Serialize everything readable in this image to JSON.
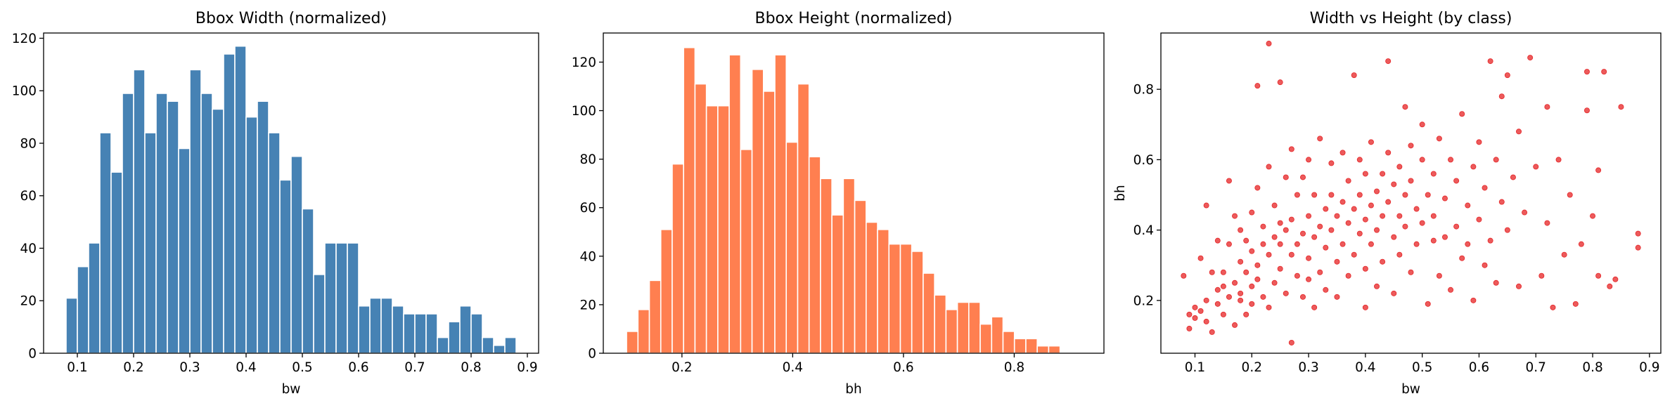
{
  "colors": {
    "hist_width": "#4682b4",
    "hist_height": "#ff7f50",
    "scatter": "#e41a1c"
  },
  "chart_data": [
    {
      "type": "bar",
      "title": "Bbox Width (normalized)",
      "xlabel": "bw",
      "ylabel": "",
      "xlim": [
        0.04,
        0.92
      ],
      "ylim": [
        0,
        122
      ],
      "xticks": [
        "0.1",
        "0.2",
        "0.3",
        "0.4",
        "0.5",
        "0.6",
        "0.7",
        "0.8",
        "0.9"
      ],
      "yticks": [
        "0",
        "20",
        "40",
        "60",
        "80",
        "100",
        "120"
      ],
      "bin_start": 0.08,
      "bin_width": 0.02,
      "values": [
        21,
        33,
        42,
        84,
        69,
        99,
        108,
        84,
        99,
        96,
        78,
        108,
        99,
        93,
        114,
        117,
        90,
        96,
        84,
        66,
        75,
        55,
        30,
        42,
        42,
        42,
        18,
        21,
        21,
        18,
        15,
        15,
        15,
        6,
        12,
        18,
        15,
        6,
        3,
        6
      ]
    },
    {
      "type": "bar",
      "title": "Bbox Height (normalized)",
      "xlabel": "bh",
      "ylabel": "",
      "xlim": [
        0.058,
        0.962
      ],
      "ylim": [
        0,
        132
      ],
      "xticks": [
        "0.2",
        "0.4",
        "0.6",
        "0.8"
      ],
      "yticks": [
        "0",
        "20",
        "40",
        "60",
        "80",
        "100",
        "120"
      ],
      "bin_start": 0.1,
      "bin_width": 0.0206,
      "values": [
        9,
        18,
        30,
        51,
        78,
        126,
        111,
        102,
        102,
        123,
        84,
        117,
        108,
        123,
        87,
        111,
        81,
        72,
        57,
        72,
        63,
        54,
        51,
        45,
        45,
        42,
        33,
        24,
        18,
        21,
        21,
        12,
        15,
        9,
        6,
        6,
        3,
        3
      ]
    },
    {
      "type": "scatter",
      "title": "Width vs Height (by class)",
      "xlabel": "bw",
      "ylabel": "bh",
      "xlim": [
        0.04,
        0.92
      ],
      "ylim": [
        0.05,
        0.96
      ],
      "xticks": [
        "0.1",
        "0.2",
        "0.3",
        "0.4",
        "0.5",
        "0.6",
        "0.7",
        "0.8",
        "0.9"
      ],
      "yticks": [
        "0.2",
        "0.4",
        "0.6",
        "0.8"
      ],
      "points": [
        [
          0.08,
          0.27
        ],
        [
          0.09,
          0.16
        ],
        [
          0.09,
          0.12
        ],
        [
          0.1,
          0.18
        ],
        [
          0.1,
          0.15
        ],
        [
          0.11,
          0.17
        ],
        [
          0.11,
          0.32
        ],
        [
          0.12,
          0.2
        ],
        [
          0.12,
          0.47
        ],
        [
          0.12,
          0.14
        ],
        [
          0.13,
          0.28
        ],
        [
          0.13,
          0.11
        ],
        [
          0.14,
          0.23
        ],
        [
          0.14,
          0.37
        ],
        [
          0.14,
          0.19
        ],
        [
          0.15,
          0.24
        ],
        [
          0.15,
          0.16
        ],
        [
          0.15,
          0.28
        ],
        [
          0.16,
          0.21
        ],
        [
          0.16,
          0.54
        ],
        [
          0.16,
          0.36
        ],
        [
          0.17,
          0.44
        ],
        [
          0.17,
          0.25
        ],
        [
          0.17,
          0.13
        ],
        [
          0.18,
          0.2
        ],
        [
          0.18,
          0.31
        ],
        [
          0.18,
          0.4
        ],
        [
          0.18,
          0.22
        ],
        [
          0.19,
          0.28
        ],
        [
          0.19,
          0.16
        ],
        [
          0.19,
          0.37
        ],
        [
          0.2,
          0.24
        ],
        [
          0.2,
          0.34
        ],
        [
          0.2,
          0.45
        ],
        [
          0.2,
          0.19
        ],
        [
          0.21,
          0.3
        ],
        [
          0.21,
          0.81
        ],
        [
          0.21,
          0.52
        ],
        [
          0.21,
          0.26
        ],
        [
          0.22,
          0.36
        ],
        [
          0.22,
          0.21
        ],
        [
          0.22,
          0.41
        ],
        [
          0.23,
          0.93
        ],
        [
          0.23,
          0.33
        ],
        [
          0.23,
          0.58
        ],
        [
          0.23,
          0.18
        ],
        [
          0.24,
          0.38
        ],
        [
          0.24,
          0.25
        ],
        [
          0.24,
          0.47
        ],
        [
          0.25,
          0.42
        ],
        [
          0.25,
          0.29
        ],
        [
          0.25,
          0.82
        ],
        [
          0.25,
          0.36
        ],
        [
          0.26,
          0.22
        ],
        [
          0.26,
          0.4
        ],
        [
          0.26,
          0.55
        ],
        [
          0.27,
          0.08
        ],
        [
          0.27,
          0.63
        ],
        [
          0.27,
          0.33
        ],
        [
          0.27,
          0.43
        ],
        [
          0.28,
          0.27
        ],
        [
          0.28,
          0.5
        ],
        [
          0.28,
          0.36
        ],
        [
          0.29,
          0.39
        ],
        [
          0.29,
          0.21
        ],
        [
          0.29,
          0.55
        ],
        [
          0.3,
          0.32
        ],
        [
          0.3,
          0.44
        ],
        [
          0.3,
          0.26
        ],
        [
          0.3,
          0.6
        ],
        [
          0.31,
          0.38
        ],
        [
          0.31,
          0.5
        ],
        [
          0.31,
          0.18
        ],
        [
          0.32,
          0.41
        ],
        [
          0.32,
          0.28
        ],
        [
          0.32,
          0.66
        ],
        [
          0.33,
          0.46
        ],
        [
          0.33,
          0.35
        ],
        [
          0.33,
          0.23
        ],
        [
          0.34,
          0.5
        ],
        [
          0.34,
          0.4
        ],
        [
          0.34,
          0.59
        ],
        [
          0.35,
          0.31
        ],
        [
          0.35,
          0.44
        ],
        [
          0.35,
          0.21
        ],
        [
          0.36,
          0.48
        ],
        [
          0.36,
          0.36
        ],
        [
          0.36,
          0.62
        ],
        [
          0.37,
          0.42
        ],
        [
          0.37,
          0.27
        ],
        [
          0.37,
          0.54
        ],
        [
          0.38,
          0.46
        ],
        [
          0.38,
          0.84
        ],
        [
          0.38,
          0.33
        ],
        [
          0.39,
          0.5
        ],
        [
          0.39,
          0.39
        ],
        [
          0.39,
          0.6
        ],
        [
          0.4,
          0.43
        ],
        [
          0.4,
          0.29
        ],
        [
          0.4,
          0.56
        ],
        [
          0.4,
          0.18
        ],
        [
          0.41,
          0.47
        ],
        [
          0.41,
          0.36
        ],
        [
          0.41,
          0.65
        ],
        [
          0.42,
          0.51
        ],
        [
          0.42,
          0.4
        ],
        [
          0.42,
          0.24
        ],
        [
          0.43,
          0.56
        ],
        [
          0.43,
          0.44
        ],
        [
          0.43,
          0.31
        ],
        [
          0.44,
          0.88
        ],
        [
          0.44,
          0.48
        ],
        [
          0.44,
          0.62
        ],
        [
          0.45,
          0.38
        ],
        [
          0.45,
          0.53
        ],
        [
          0.45,
          0.22
        ],
        [
          0.46,
          0.44
        ],
        [
          0.46,
          0.58
        ],
        [
          0.46,
          0.33
        ],
        [
          0.47,
          0.5
        ],
        [
          0.47,
          0.75
        ],
        [
          0.47,
          0.41
        ],
        [
          0.48,
          0.54
        ],
        [
          0.48,
          0.28
        ],
        [
          0.48,
          0.64
        ],
        [
          0.49,
          0.46
        ],
        [
          0.49,
          0.36
        ],
        [
          0.5,
          0.6
        ],
        [
          0.5,
          0.42
        ],
        [
          0.5,
          0.7
        ],
        [
          0.51,
          0.5
        ],
        [
          0.51,
          0.19
        ],
        [
          0.52,
          0.37
        ],
        [
          0.52,
          0.56
        ],
        [
          0.52,
          0.44
        ],
        [
          0.53,
          0.66
        ],
        [
          0.53,
          0.27
        ],
        [
          0.54,
          0.49
        ],
        [
          0.54,
          0.38
        ],
        [
          0.55,
          0.6
        ],
        [
          0.55,
          0.23
        ],
        [
          0.56,
          0.41
        ],
        [
          0.56,
          0.54
        ],
        [
          0.57,
          0.32
        ],
        [
          0.57,
          0.73
        ],
        [
          0.58,
          0.47
        ],
        [
          0.58,
          0.36
        ],
        [
          0.59,
          0.58
        ],
        [
          0.59,
          0.2
        ],
        [
          0.6,
          0.43
        ],
        [
          0.6,
          0.65
        ],
        [
          0.61,
          0.3
        ],
        [
          0.61,
          0.52
        ],
        [
          0.62,
          0.88
        ],
        [
          0.62,
          0.37
        ],
        [
          0.63,
          0.6
        ],
        [
          0.63,
          0.25
        ],
        [
          0.64,
          0.48
        ],
        [
          0.64,
          0.78
        ],
        [
          0.65,
          0.84
        ],
        [
          0.65,
          0.4
        ],
        [
          0.66,
          0.55
        ],
        [
          0.67,
          0.24
        ],
        [
          0.67,
          0.68
        ],
        [
          0.68,
          0.45
        ],
        [
          0.69,
          0.89
        ],
        [
          0.7,
          0.58
        ],
        [
          0.71,
          0.27
        ],
        [
          0.72,
          0.42
        ],
        [
          0.72,
          0.75
        ],
        [
          0.73,
          0.18
        ],
        [
          0.74,
          0.6
        ],
        [
          0.75,
          0.33
        ],
        [
          0.76,
          0.5
        ],
        [
          0.77,
          0.19
        ],
        [
          0.78,
          0.36
        ],
        [
          0.79,
          0.85
        ],
        [
          0.79,
          0.74
        ],
        [
          0.8,
          0.44
        ],
        [
          0.81,
          0.27
        ],
        [
          0.81,
          0.57
        ],
        [
          0.82,
          0.85
        ],
        [
          0.83,
          0.24
        ],
        [
          0.84,
          0.26
        ],
        [
          0.85,
          0.75
        ],
        [
          0.88,
          0.39
        ],
        [
          0.88,
          0.35
        ]
      ]
    }
  ]
}
